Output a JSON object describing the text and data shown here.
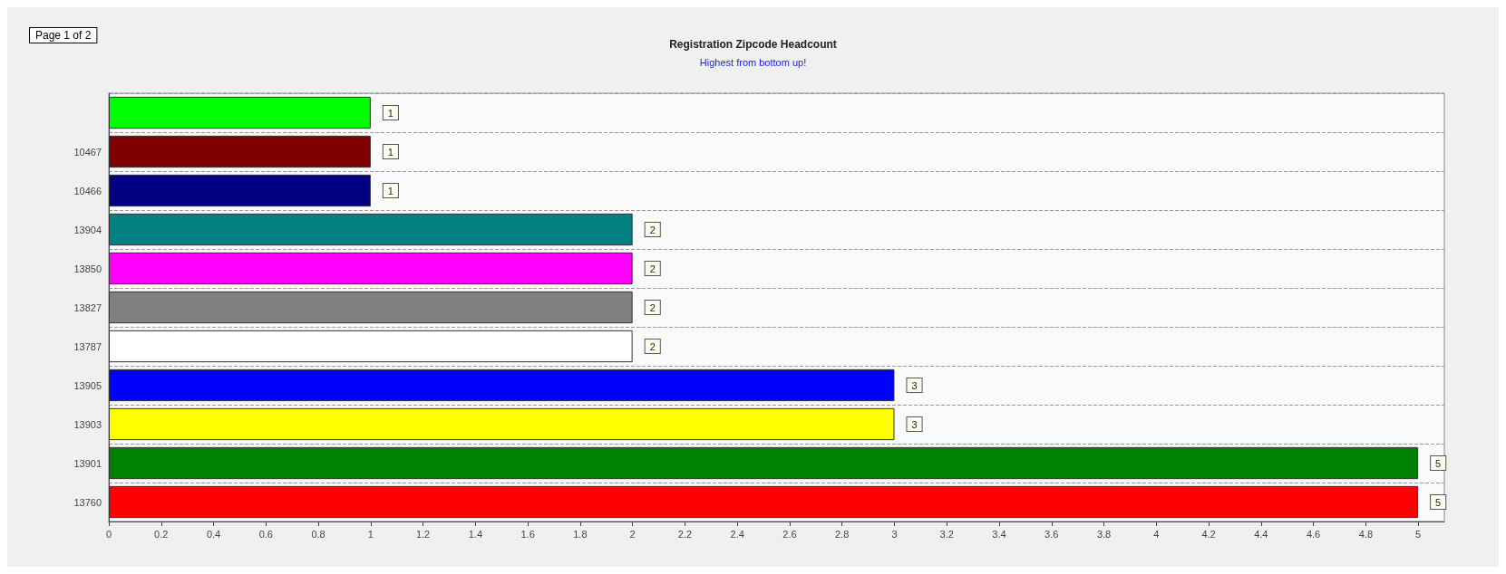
{
  "chart_data": {
    "type": "bar",
    "orientation": "horizontal",
    "title": "Registration Zipcode Headcount",
    "subtitle": "Highest from bottom up!",
    "annotations": [
      "Page 1 of 2"
    ],
    "categories": [
      null,
      "10467",
      "10466",
      "13904",
      "13850",
      "13827",
      "13787",
      "13905",
      "13903",
      "13901",
      "13760"
    ],
    "values": [
      1,
      1,
      1,
      2,
      2,
      2,
      2,
      3,
      3,
      5,
      5
    ],
    "colors": [
      "#00ff00",
      "#800000",
      "#000080",
      "#008080",
      "#ff00ff",
      "#808080",
      "#ffffff",
      "#0000ff",
      "#ffff00",
      "#008000",
      "#ff0000"
    ],
    "xlim": [
      0,
      5.1
    ],
    "xticks": [
      0,
      0.2,
      0.4,
      0.6,
      0.8,
      1,
      1.2,
      1.4,
      1.6,
      1.8,
      2,
      2.2,
      2.4,
      2.6,
      2.8,
      3,
      3.2,
      3.4,
      3.6,
      3.8,
      4,
      4.2,
      4.4,
      4.6,
      4.8,
      5
    ],
    "grid": "y",
    "data_labels": true
  }
}
